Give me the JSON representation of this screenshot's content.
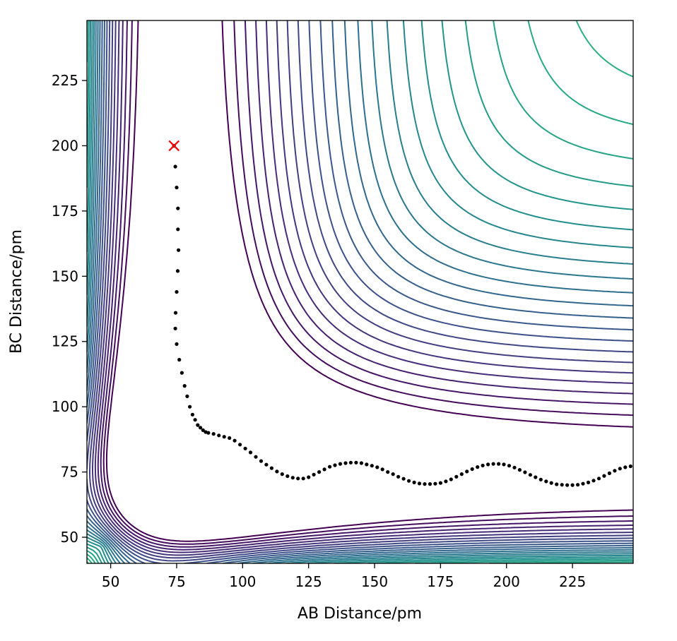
{
  "chart_data": {
    "type": "contour",
    "title": "",
    "xlabel": "AB Distance/pm",
    "ylabel": "BC Distance/pm",
    "xlim": [
      41,
      248
    ],
    "ylim": [
      40,
      248
    ],
    "x_ticks": [
      50,
      75,
      100,
      125,
      150,
      175,
      200,
      225
    ],
    "y_ticks": [
      50,
      75,
      100,
      125,
      150,
      175,
      200,
      225
    ],
    "colormap": "viridis",
    "colormap_stops": [
      "#440154",
      "#472d7b",
      "#3b528b",
      "#2c728e",
      "#21918c",
      "#28ae80",
      "#5ec962",
      "#addc30",
      "#fde725"
    ],
    "grid": false,
    "contour_levels": 34,
    "surface_model": {
      "form": "LEPS-like A + B–C exchange",
      "re_AB": 74,
      "re_BC": 74,
      "barrier_location": [
        88,
        92
      ]
    },
    "start_marker": {
      "x": 74,
      "y": 200,
      "symbol": "x",
      "color": "#ff0000"
    },
    "trajectory": {
      "marker": "dot",
      "color": "#000000",
      "points": [
        [
          74,
          200
        ],
        [
          74.5,
          192
        ],
        [
          75,
          184
        ],
        [
          75.5,
          176
        ],
        [
          75.5,
          168
        ],
        [
          75.7,
          160
        ],
        [
          75.4,
          152
        ],
        [
          75.0,
          144
        ],
        [
          74.6,
          136
        ],
        [
          74.5,
          130
        ],
        [
          75,
          124
        ],
        [
          76,
          118
        ],
        [
          77,
          113
        ],
        [
          78,
          108
        ],
        [
          79,
          104
        ],
        [
          80,
          100
        ],
        [
          81,
          97
        ],
        [
          82,
          95
        ],
        [
          83,
          93
        ],
        [
          84,
          92
        ],
        [
          85,
          91
        ],
        [
          86,
          90.3
        ],
        [
          87,
          90
        ],
        [
          89,
          89.6
        ],
        [
          91,
          89
        ],
        [
          93,
          88.5
        ],
        [
          95,
          88
        ],
        [
          97,
          87
        ],
        [
          99,
          85.5
        ],
        [
          101,
          84
        ],
        [
          103,
          82.5
        ],
        [
          105,
          80.8
        ],
        [
          107,
          79.2
        ],
        [
          109,
          77.8
        ],
        [
          111,
          76.5
        ],
        [
          113,
          75.2
        ],
        [
          115,
          74.2
        ],
        [
          117,
          73.4
        ],
        [
          119,
          72.8
        ],
        [
          121,
          72.5
        ],
        [
          123,
          72.5
        ],
        [
          125,
          73
        ],
        [
          127,
          74
        ],
        [
          129,
          75
        ],
        [
          131,
          76
        ],
        [
          133,
          77
        ],
        [
          135,
          77.6
        ],
        [
          137,
          78.1
        ],
        [
          139,
          78.4
        ],
        [
          141,
          78.6
        ],
        [
          143,
          78.6
        ],
        [
          145,
          78.4
        ],
        [
          147,
          77.9
        ],
        [
          149,
          77.4
        ],
        [
          151,
          76.8
        ],
        [
          153,
          76
        ],
        [
          155,
          75
        ],
        [
          157,
          74.2
        ],
        [
          159,
          73.2
        ],
        [
          161,
          72.4
        ],
        [
          163,
          71.6
        ],
        [
          165,
          71.0
        ],
        [
          167,
          70.6
        ],
        [
          169,
          70.4
        ],
        [
          171,
          70.4
        ],
        [
          173,
          70.5
        ],
        [
          175,
          70.8
        ],
        [
          177,
          71.4
        ],
        [
          179,
          72.2
        ],
        [
          181,
          73.2
        ],
        [
          183,
          74.2
        ],
        [
          185,
          75.2
        ],
        [
          187,
          76.1
        ],
        [
          189,
          76.9
        ],
        [
          191,
          77.5
        ],
        [
          193,
          77.9
        ],
        [
          195,
          78.1
        ],
        [
          197,
          78.1
        ],
        [
          199,
          77.9
        ],
        [
          201,
          77.4
        ],
        [
          203,
          76.7
        ],
        [
          205,
          75.8
        ],
        [
          207,
          74.9
        ],
        [
          209,
          73.9
        ],
        [
          211,
          73.0
        ],
        [
          213,
          72.1
        ],
        [
          215,
          71.4
        ],
        [
          217,
          70.8
        ],
        [
          219,
          70.3
        ],
        [
          221,
          70.1
        ],
        [
          223,
          70.0
        ],
        [
          225,
          70.0
        ],
        [
          227,
          70.1
        ],
        [
          229,
          70.5
        ],
        [
          231,
          71.0
        ],
        [
          233,
          71.7
        ],
        [
          235,
          72.5
        ],
        [
          237,
          73.5
        ],
        [
          239,
          74.5
        ],
        [
          241,
          75.5
        ],
        [
          243,
          76.3
        ],
        [
          245,
          76.8
        ],
        [
          247,
          77.2
        ]
      ]
    }
  }
}
